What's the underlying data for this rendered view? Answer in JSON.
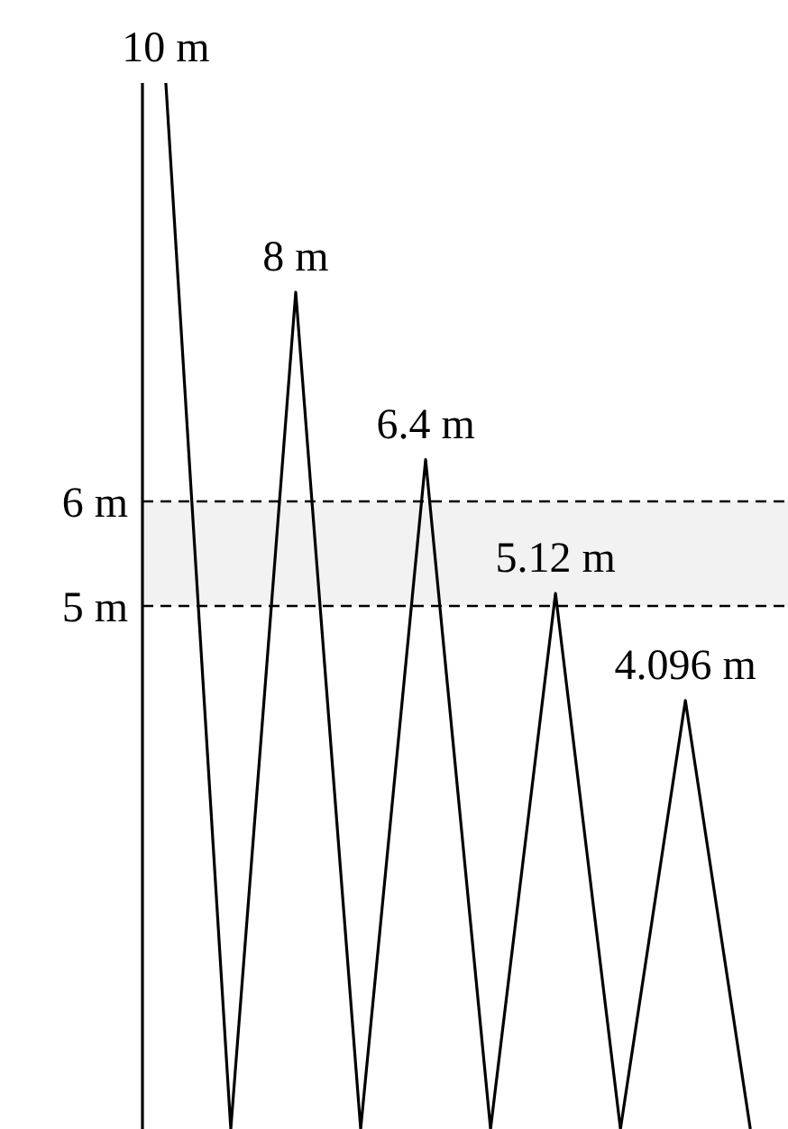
{
  "chart_data": {
    "type": "line",
    "categories": [
      null,
      null,
      null,
      null,
      null,
      null,
      null,
      null,
      null,
      null
    ],
    "series": [
      {
        "color": "#000000",
        "values": [
          10,
          0,
          8,
          0,
          6.4,
          0,
          5.12,
          0,
          4.096,
          0
        ]
      }
    ],
    "value_labels": [
      "10 m",
      null,
      "8 m",
      null,
      "6.4 m",
      null,
      "5.12 m",
      null,
      "4.096 m",
      null
    ],
    "ylim": [
      0,
      10
    ],
    "yticks": [
      {
        "value": 5,
        "label": "5 m"
      },
      {
        "value": 6,
        "label": "6 m"
      }
    ],
    "ref_lines": [
      {
        "axis": "y",
        "value": 5,
        "line_style": "dashed",
        "color": "#000000"
      },
      {
        "axis": "y",
        "value": 6,
        "line_style": "dashed",
        "color": "#000000"
      }
    ],
    "bands": [
      {
        "axis": "y",
        "from": 5,
        "to": 6,
        "color": "#f2f2f2"
      }
    ],
    "marker": "none",
    "line_style": "solid",
    "grid": false,
    "legend": false
  }
}
